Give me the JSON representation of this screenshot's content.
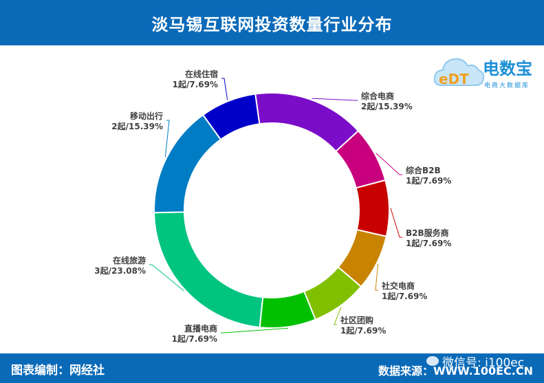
{
  "header": {
    "title": "淡马锡互联网投资数量行业分布"
  },
  "footer": {
    "credit": "图表编制：网经社",
    "source": "数据来源：WWW.100EC.CN"
  },
  "watermark": {
    "text": "微信号: i100ec"
  },
  "logo": {
    "brand": "电数宝",
    "subtitle": "电商大数据库",
    "mark_text": "eDT"
  },
  "chart_data": {
    "type": "pie",
    "donut": true,
    "slices": [
      {
        "name": "综合电商",
        "count_label": "2起",
        "value": 15.39,
        "color": "#7b0dc8"
      },
      {
        "name": "综合B2B",
        "count_label": "1起",
        "value": 7.69,
        "color": "#c8007e"
      },
      {
        "name": "B2B服务商",
        "count_label": "1起",
        "value": 7.69,
        "color": "#c80000"
      },
      {
        "name": "社交电商",
        "count_label": "1起",
        "value": 7.69,
        "color": "#c88400"
      },
      {
        "name": "社区团购",
        "count_label": "1起",
        "value": 7.69,
        "color": "#80c000"
      },
      {
        "name": "直播电商",
        "count_label": "1起",
        "value": 7.69,
        "color": "#00c000"
      },
      {
        "name": "在线旅游",
        "count_label": "3起",
        "value": 23.08,
        "color": "#00c480"
      },
      {
        "name": "移动出行",
        "count_label": "2起",
        "value": 15.39,
        "color": "#007cc4"
      },
      {
        "name": "在线住宿",
        "count_label": "1起",
        "value": 7.69,
        "color": "#0000c8"
      }
    ]
  }
}
